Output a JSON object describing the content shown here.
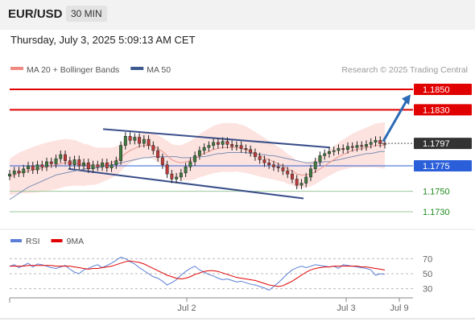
{
  "header": {
    "pair": "EUR/USD",
    "timeframe": "30 MIN"
  },
  "datetime": "Thursday, July 3, 2025 5:09:13 AM CET",
  "credit": "Research © 2025 Trading Central",
  "legend": [
    {
      "label": "MA 20 + Bollinger Bands",
      "color": "#f08a80"
    },
    {
      "label": "MA 50",
      "color": "#3d5a8e"
    }
  ],
  "rsi_legend": [
    {
      "label": "RSI",
      "color": "#5b7fd6"
    },
    {
      "label": "9MA",
      "color": "#e00000"
    }
  ],
  "colors": {
    "resistance": "#e00000",
    "support": "#2b5fd9",
    "current": "#333333",
    "target": "#1f8a1f",
    "arrow": "#2d6bb6"
  },
  "levels": [
    {
      "value": "1.1850",
      "kind": "resistance",
      "style": "box"
    },
    {
      "value": "1.1830",
      "kind": "resistance",
      "style": "box"
    },
    {
      "value": "1.1797",
      "kind": "current",
      "style": "box"
    },
    {
      "value": "1.1775",
      "kind": "support",
      "style": "box"
    },
    {
      "value": "1.1750",
      "kind": "target",
      "style": "text"
    },
    {
      "value": "1.1730",
      "kind": "target",
      "style": "text"
    }
  ],
  "chart_data": {
    "type": "line",
    "title": "EUR/USD 30 MIN",
    "x_ticks": [
      "Jul 2",
      "Jul 3",
      "Jul 9"
    ],
    "ylim": [
      1.1715,
      1.1865
    ],
    "price": [
      1.1767,
      1.177,
      1.1768,
      1.1772,
      1.1775,
      1.1771,
      1.1776,
      1.1774,
      1.1779,
      1.1777,
      1.1782,
      1.1786,
      1.178,
      1.1776,
      1.1781,
      1.1775,
      1.1778,
      1.1772,
      1.1776,
      1.1774,
      1.1778,
      1.1773,
      1.1776,
      1.178,
      1.1795,
      1.1804,
      1.18,
      1.1803,
      1.1797,
      1.1801,
      1.1795,
      1.179,
      1.1783,
      1.1776,
      1.1767,
      1.1762,
      1.1764,
      1.1768,
      1.1774,
      1.1779,
      1.1785,
      1.179,
      1.1793,
      1.1795,
      1.1798,
      1.1796,
      1.1799,
      1.1796,
      1.1794,
      1.1795,
      1.1792,
      1.1791,
      1.1788,
      1.1784,
      1.1781,
      1.1778,
      1.1776,
      1.1774,
      1.1773,
      1.177,
      1.1767,
      1.1762,
      1.1756,
      1.1758,
      1.1764,
      1.1772,
      1.1779,
      1.1785,
      1.1787,
      1.1789,
      1.179,
      1.1792,
      1.1791,
      1.1794,
      1.1793,
      1.1795,
      1.1794,
      1.1796,
      1.1798,
      1.18,
      1.1797,
      1.1796
    ],
    "ma20": [
      1.1764,
      1.1766,
      1.1768,
      1.1769,
      1.177,
      1.1771,
      1.1772,
      1.1773,
      1.1774,
      1.1775,
      1.1776,
      1.1777,
      1.1778,
      1.1778,
      1.1778,
      1.1777,
      1.1776,
      1.1776,
      1.1775,
      1.1775,
      1.1776,
      1.1777,
      1.1778,
      1.178,
      1.1783,
      1.1787,
      1.179,
      1.1792,
      1.1794,
      1.1795,
      1.1795,
      1.1794,
      1.1792,
      1.1789,
      1.1785,
      1.1781,
      1.1779,
      1.1778,
      1.1779,
      1.178,
      1.1782,
      1.1785,
      1.1787,
      1.1789,
      1.1791,
      1.1792,
      1.1793,
      1.1793,
      1.1793,
      1.1793,
      1.1792,
      1.1791,
      1.1789,
      1.1787,
      1.1785,
      1.1783,
      1.1781,
      1.1779,
      1.1777,
      1.1775,
      1.1772,
      1.177,
      1.1767,
      1.1766,
      1.1766,
      1.1767,
      1.1769,
      1.1772,
      1.1775,
      1.1778,
      1.1781,
      1.1784,
      1.1786,
      1.1788,
      1.179,
      1.1791,
      1.1792,
      1.1793,
      1.1794,
      1.1795,
      1.1795,
      1.1795
    ],
    "ma50": [
      1.1742,
      1.1745,
      1.1748,
      1.1751,
      1.1754,
      1.1756,
      1.1758,
      1.176,
      1.1762,
      1.1764,
      1.1766,
      1.1767,
      1.1768,
      1.1769,
      1.177,
      1.1771,
      1.1772,
      1.1772,
      1.1773,
      1.1773,
      1.1774,
      1.1775,
      1.1776,
      1.1777,
      1.1778,
      1.1779,
      1.178,
      1.1781,
      1.1782,
      1.1783,
      1.1783,
      1.1784,
      1.1784,
      1.1784,
      1.1784,
      1.1784,
      1.1784,
      1.1783,
      1.1783,
      1.1783,
      1.1783,
      1.1784,
      1.1784,
      1.1785,
      1.1786,
      1.1787,
      1.1787,
      1.1788,
      1.1788,
      1.1788,
      1.1788,
      1.1788,
      1.1787,
      1.1787,
      1.1786,
      1.1786,
      1.1785,
      1.1785,
      1.1784,
      1.1783,
      1.1782,
      1.1781,
      1.178,
      1.1779,
      1.1778,
      1.1778,
      1.1778,
      1.1778,
      1.1779,
      1.1779,
      1.178,
      1.1781,
      1.1782,
      1.1783,
      1.1784,
      1.1785,
      1.1786,
      1.1787,
      1.1787,
      1.1788,
      1.1789,
      1.1789
    ],
    "rsi_axis": [
      70,
      50,
      30
    ],
    "rsi_ylim": [
      20,
      80
    ],
    "rsi": [
      60,
      62,
      58,
      61,
      64,
      59,
      63,
      62,
      60,
      58,
      57,
      59,
      61,
      56,
      52,
      50,
      55,
      57,
      60,
      62,
      58,
      61,
      64,
      68,
      72,
      70,
      66,
      63,
      58,
      54,
      50,
      46,
      44,
      40,
      35,
      38,
      42,
      48,
      53,
      57,
      60,
      55,
      52,
      49,
      47,
      44,
      42,
      43,
      41,
      39,
      40,
      38,
      36,
      35,
      33,
      31,
      28,
      33,
      38,
      44,
      50,
      55,
      58,
      60,
      58,
      60,
      62,
      61,
      60,
      59,
      60,
      57,
      62,
      61,
      60,
      59,
      58,
      57,
      55,
      48,
      50,
      49
    ],
    "rsi_ma": [
      60,
      60,
      60,
      60,
      61,
      61,
      61,
      61,
      61,
      61,
      60,
      60,
      60,
      60,
      59,
      58,
      57,
      56,
      57,
      57,
      58,
      59,
      60,
      62,
      64,
      66,
      67,
      66,
      65,
      63,
      60,
      57,
      54,
      51,
      48,
      46,
      44,
      43,
      44,
      46,
      49,
      51,
      53,
      54,
      54,
      53,
      51,
      49,
      47,
      45,
      44,
      43,
      42,
      41,
      39,
      37,
      35,
      34,
      33,
      34,
      37,
      40,
      44,
      48,
      52,
      55,
      57,
      58,
      59,
      59,
      60,
      60,
      60,
      60,
      60,
      60,
      59,
      59,
      58,
      57,
      56,
      55
    ]
  }
}
